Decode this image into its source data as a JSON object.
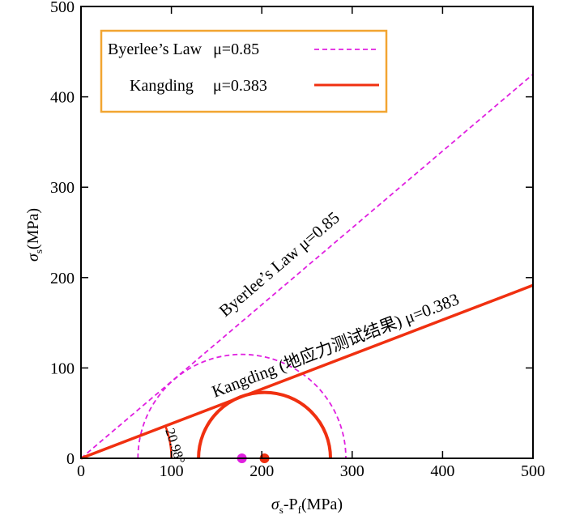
{
  "chart_data": {
    "type": "line",
    "xlabel_main": "σ",
    "xlabel_sub": "s",
    "xlabel_mid": "-P",
    "xlabel_sub2": "f",
    "xlabel_unit": "(MPa)",
    "ylabel_main": "σ",
    "ylabel_sub": "s",
    "ylabel_unit": "(MPa)",
    "xlim": [
      0,
      500
    ],
    "ylim": [
      0,
      500
    ],
    "xticks": [
      "0",
      "100",
      "200",
      "300",
      "400",
      "500"
    ],
    "yticks": [
      "0",
      "100",
      "200",
      "300",
      "400",
      "500"
    ],
    "series": [
      {
        "name": "Byerlee’s Law",
        "mu_label": "μ=0.85",
        "slope": 0.85,
        "color": "#e020e0",
        "style": "dashed"
      },
      {
        "name": "Kangding",
        "mu_label": "μ=0.383",
        "slope": 0.383,
        "color": "#f03010",
        "style": "solid"
      }
    ],
    "circles": [
      {
        "center": 178,
        "radius": 115,
        "color": "#e020e0",
        "style": "dashed"
      },
      {
        "center": 203,
        "radius": 73,
        "color": "#f03010",
        "style": "solid"
      }
    ],
    "points": [
      {
        "x": 178,
        "y": 0,
        "color": "#e020e0"
      },
      {
        "x": 203,
        "y": 0,
        "color": "#f03010"
      }
    ],
    "annotations": {
      "byerlee_line": "Byerlee’s Law  μ=0.85",
      "kangding_line": "Kangding (地应力测试结果)  μ=0.383",
      "angle": "20.98°"
    },
    "legend_position": "top-left",
    "grid": false
  }
}
